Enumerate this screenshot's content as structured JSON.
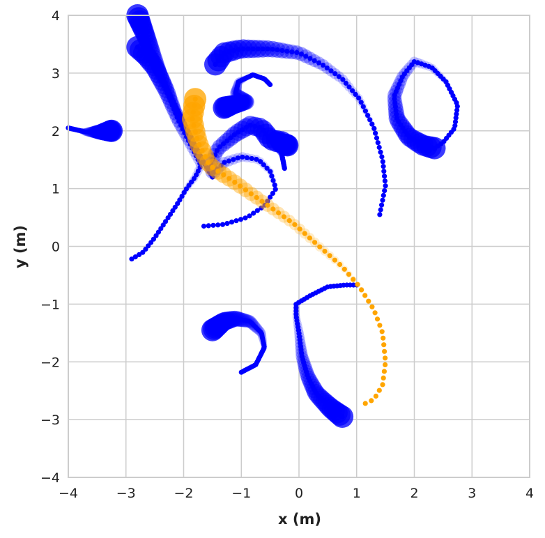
{
  "chart_data": {
    "type": "scatter",
    "xlabel": "x (m)",
    "ylabel": "y (m)",
    "xlim": [
      -4,
      4
    ],
    "ylim": [
      -4,
      4
    ],
    "xticks": [
      -4,
      -3,
      -2,
      -1,
      0,
      1,
      2,
      3,
      4
    ],
    "yticks": [
      -4,
      -3,
      -2,
      -1,
      0,
      1,
      2,
      3,
      4
    ],
    "grid": true,
    "colors": {
      "agent": "#0000ff",
      "highlight": "#ffa500",
      "grid": "#cccccc",
      "frame": "#cccccc"
    },
    "trajectories": [
      {
        "color": "agent",
        "path": [
          [
            -2.8,
            3.45
          ],
          [
            -2.65,
            3.3
          ],
          [
            -2.5,
            3.1
          ],
          [
            -2.4,
            2.9
          ],
          [
            -2.3,
            2.7
          ],
          [
            -2.2,
            2.45
          ],
          [
            -2.1,
            2.2
          ],
          [
            -2.0,
            2.0
          ],
          [
            -1.9,
            1.8
          ],
          [
            -1.8,
            1.6
          ],
          [
            -1.7,
            1.4
          ],
          [
            -1.8,
            1.2
          ],
          [
            -1.95,
            1.0
          ],
          [
            -2.1,
            0.75
          ],
          [
            -2.3,
            0.45
          ],
          [
            -2.5,
            0.15
          ],
          [
            -2.7,
            -0.1
          ],
          [
            -2.9,
            -0.22
          ]
        ]
      },
      {
        "color": "agent",
        "path": [
          [
            -2.8,
            4.0
          ],
          [
            -2.6,
            3.5
          ],
          [
            -2.4,
            3.0
          ],
          [
            -2.2,
            2.55
          ],
          [
            -2.0,
            2.15
          ],
          [
            -1.8,
            1.75
          ],
          [
            -1.65,
            1.45
          ],
          [
            -1.5,
            1.2
          ]
        ]
      },
      {
        "color": "agent",
        "path": [
          [
            -1.45,
            3.15
          ],
          [
            -1.3,
            3.35
          ],
          [
            -1.0,
            3.42
          ],
          [
            -0.5,
            3.42
          ],
          [
            0.0,
            3.35
          ],
          [
            0.4,
            3.15
          ],
          [
            0.75,
            2.9
          ],
          [
            1.05,
            2.55
          ],
          [
            1.3,
            2.05
          ],
          [
            1.45,
            1.5
          ],
          [
            1.5,
            1.05
          ],
          [
            1.4,
            0.55
          ]
        ]
      },
      {
        "color": "agent",
        "path": [
          [
            -1.3,
            2.4
          ],
          [
            -1.15,
            2.45
          ],
          [
            -0.9,
            2.5
          ],
          [
            -1.1,
            2.65
          ],
          [
            -1.05,
            2.85
          ],
          [
            -0.8,
            2.97
          ],
          [
            -0.6,
            2.9
          ],
          [
            -0.5,
            2.8
          ]
        ]
      },
      {
        "color": "agent",
        "path": [
          [
            -0.3,
            1.8
          ],
          [
            -0.5,
            1.85
          ],
          [
            -0.65,
            2.05
          ],
          [
            -0.85,
            2.1
          ],
          [
            -1.1,
            1.95
          ],
          [
            -1.4,
            1.7
          ],
          [
            -1.55,
            1.4
          ],
          [
            -1.5,
            1.25
          ],
          [
            -1.3,
            1.45
          ],
          [
            -1.0,
            1.55
          ],
          [
            -0.7,
            1.5
          ],
          [
            -0.5,
            1.3
          ],
          [
            -0.4,
            1.0
          ],
          [
            -0.6,
            0.7
          ],
          [
            -0.9,
            0.5
          ],
          [
            -1.3,
            0.38
          ],
          [
            -1.65,
            0.35
          ]
        ]
      },
      {
        "color": "agent",
        "path": [
          [
            -0.2,
            1.75
          ],
          [
            -0.4,
            1.85
          ],
          [
            -0.3,
            1.6
          ],
          [
            -0.25,
            1.35
          ]
        ]
      },
      {
        "color": "agent",
        "path": [
          [
            -3.25,
            2.0
          ],
          [
            -3.45,
            1.98
          ],
          [
            -3.7,
            1.98
          ],
          [
            -4.0,
            2.05
          ]
        ]
      },
      {
        "color": "agent",
        "path": [
          [
            2.35,
            1.7
          ],
          [
            2.15,
            1.75
          ],
          [
            1.9,
            1.9
          ],
          [
            1.7,
            2.2
          ],
          [
            1.65,
            2.6
          ],
          [
            1.8,
            2.95
          ],
          [
            2.0,
            3.2
          ],
          [
            2.3,
            3.1
          ],
          [
            2.55,
            2.85
          ],
          [
            2.75,
            2.45
          ],
          [
            2.7,
            2.05
          ],
          [
            2.5,
            1.8
          ],
          [
            2.35,
            1.7
          ]
        ]
      },
      {
        "color": "agent",
        "path": [
          [
            -1.5,
            -1.45
          ],
          [
            -1.3,
            -1.3
          ],
          [
            -1.1,
            -1.25
          ],
          [
            -0.85,
            -1.3
          ],
          [
            -0.65,
            -1.5
          ],
          [
            -0.6,
            -1.75
          ],
          [
            -0.75,
            -2.05
          ],
          [
            -1.0,
            -2.18
          ]
        ]
      },
      {
        "color": "agent",
        "path": [
          [
            0.75,
            -2.95
          ],
          [
            0.55,
            -2.8
          ],
          [
            0.3,
            -2.55
          ],
          [
            0.15,
            -2.25
          ],
          [
            0.05,
            -1.9
          ],
          [
            0.0,
            -1.5
          ],
          [
            -0.05,
            -1.2
          ],
          [
            -0.05,
            -1.0
          ],
          [
            0.2,
            -0.85
          ],
          [
            0.5,
            -0.7
          ],
          [
            0.8,
            -0.67
          ],
          [
            1.0,
            -0.67
          ]
        ]
      }
    ],
    "highlight": {
      "color": "highlight",
      "path": [
        [
          -1.8,
          2.55
        ],
        [
          -1.85,
          2.2
        ],
        [
          -1.75,
          1.8
        ],
        [
          -1.55,
          1.4
        ],
        [
          -1.1,
          1.1
        ],
        [
          -0.6,
          0.75
        ],
        [
          -0.1,
          0.4
        ],
        [
          0.35,
          0.0
        ],
        [
          0.75,
          -0.35
        ],
        [
          1.05,
          -0.7
        ],
        [
          1.3,
          -1.1
        ],
        [
          1.45,
          -1.5
        ],
        [
          1.5,
          -2.0
        ],
        [
          1.45,
          -2.4
        ],
        [
          1.3,
          -2.65
        ],
        [
          1.15,
          -2.72
        ]
      ]
    }
  }
}
